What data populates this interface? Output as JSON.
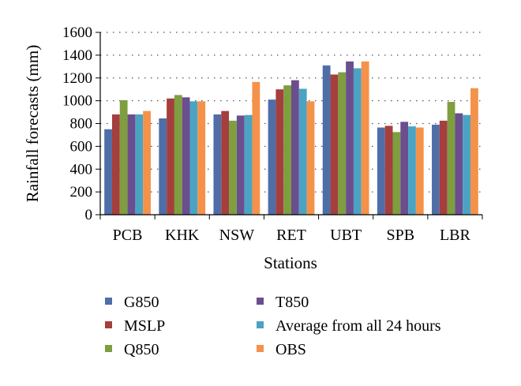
{
  "chart_data": {
    "type": "bar",
    "title": "",
    "xlabel": "Stations",
    "ylabel": "Rainfall forecasts (mm)",
    "ylim": [
      0,
      1600
    ],
    "yticks": [
      0,
      200,
      400,
      600,
      800,
      1000,
      1200,
      1400,
      1600
    ],
    "grid": "horizontal dotted",
    "legend_position": "bottom",
    "categories": [
      "PCB",
      "KHK",
      "NSW",
      "RET",
      "UBT",
      "SPB",
      "LBR"
    ],
    "series": [
      {
        "name": "G850",
        "color": "#4F6EA8",
        "values": [
          750,
          845,
          880,
          1010,
          1310,
          765,
          790
        ]
      },
      {
        "name": "MSLP",
        "color": "#A43F3E",
        "values": [
          880,
          1020,
          910,
          1100,
          1230,
          780,
          825
        ]
      },
      {
        "name": "Q850",
        "color": "#7E9E3F",
        "values": [
          1005,
          1050,
          825,
          1135,
          1250,
          725,
          990
        ]
      },
      {
        "name": "T850",
        "color": "#6B4E8E",
        "values": [
          880,
          1030,
          870,
          1180,
          1345,
          815,
          890
        ]
      },
      {
        "name": "Average from all 24 hours",
        "color": "#4BA3C3",
        "values": [
          880,
          995,
          875,
          1105,
          1285,
          775,
          875
        ]
      },
      {
        "name": "OBS",
        "color": "#F4924A",
        "values": [
          910,
          995,
          1165,
          995,
          1345,
          765,
          1110
        ]
      }
    ]
  }
}
